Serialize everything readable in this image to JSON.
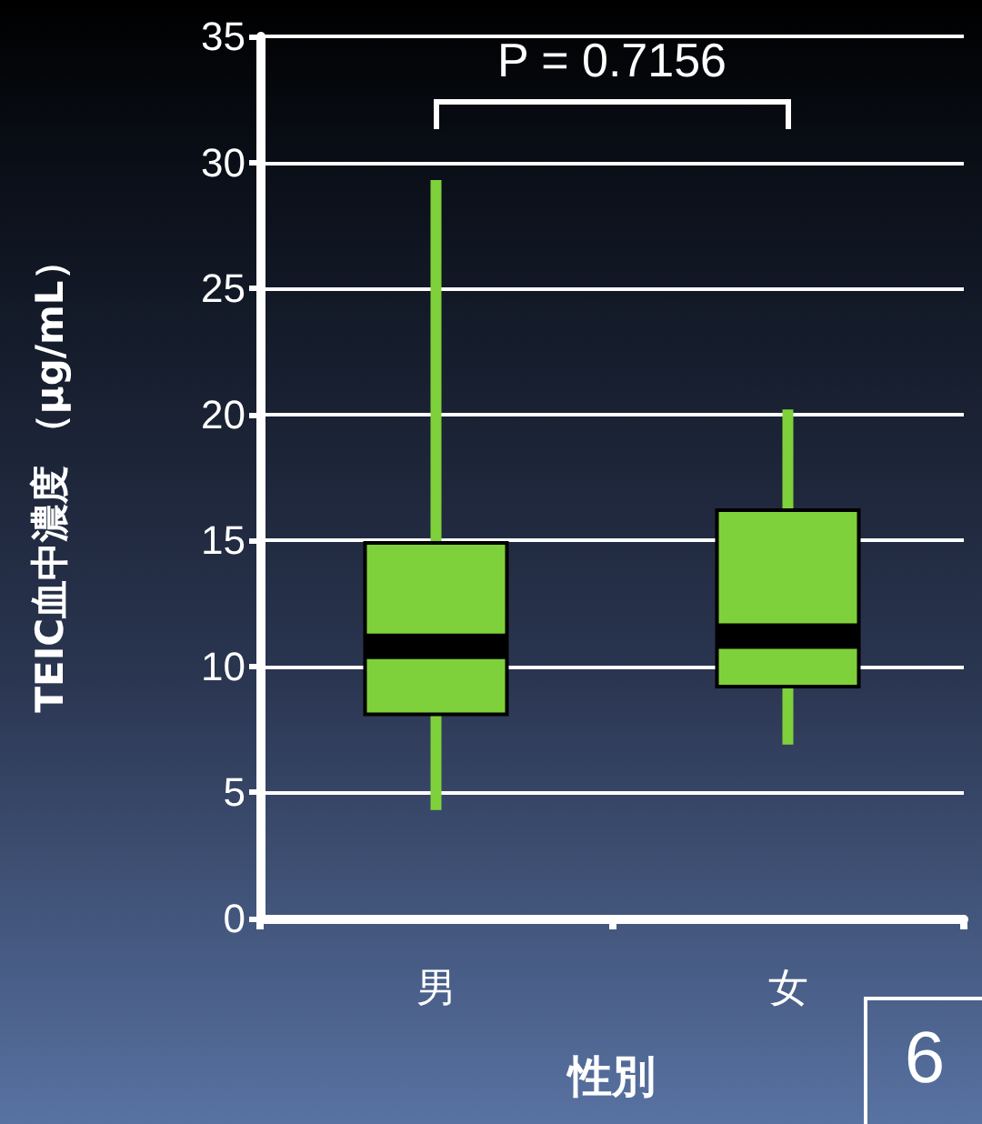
{
  "chart_data": {
    "type": "box",
    "xlabel": "性別",
    "ylabel": "TEIC血中濃度 （μg/mL）",
    "categories": [
      "男",
      "女"
    ],
    "boxes": [
      {
        "low": 4.3,
        "q1": 8.1,
        "median": 10.8,
        "q3": 14.9,
        "high": 29.3
      },
      {
        "low": 6.9,
        "q1": 9.2,
        "median": 11.2,
        "q3": 16.2,
        "high": 20.2
      }
    ],
    "color": "#7fd13b",
    "ylim": [
      0,
      35
    ],
    "yticks": [
      0,
      5,
      10,
      15,
      20,
      25,
      30,
      35
    ],
    "grid": "y",
    "annotations": [
      "P = 0.7156",
      "6"
    ]
  }
}
